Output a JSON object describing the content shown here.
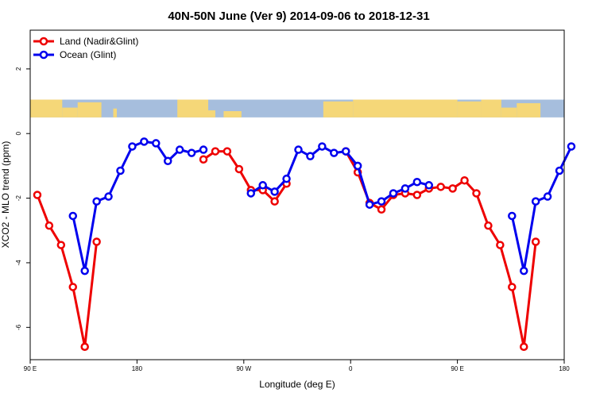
{
  "chart_data": {
    "type": "line",
    "title": "40N-50N June (Ver 9)   2014-09-06 to 2018-12-31",
    "xlabel": "Longitude (deg E)",
    "ylabel": "XCO2 - MLO trend (ppm)",
    "xlim": [
      90,
      540
    ],
    "ylim": [
      -7,
      3.2
    ],
    "x_ticks": [
      {
        "value": 90,
        "label": "90 E"
      },
      {
        "value": 180,
        "label": "180"
      },
      {
        "value": 270,
        "label": "90 W"
      },
      {
        "value": 360,
        "label": "0"
      },
      {
        "value": 450,
        "label": "90 E"
      },
      {
        "value": 540,
        "label": "180"
      }
    ],
    "y_ticks": [
      {
        "value": 2,
        "label": "2"
      },
      {
        "value": 0,
        "label": "0"
      },
      {
        "value": -2,
        "label": "-2"
      },
      {
        "value": -4,
        "label": "-4"
      },
      {
        "value": -6,
        "label": "-6"
      }
    ],
    "legend_position": "top-left",
    "map_band": {
      "ymin": 0.5,
      "ymax": 1.05
    },
    "colors": {
      "land": "#ee0000",
      "ocean": "#0000ee",
      "map_land": "#f5d778",
      "map_ocean": "#a6bedd"
    },
    "series": [
      {
        "name": "Land (Nadir&Glint)",
        "key": "land",
        "segments": [
          [
            [
              96,
              -1.9
            ],
            [
              106,
              -2.85
            ],
            [
              116,
              -3.45
            ],
            [
              126,
              -4.75
            ],
            [
              136,
              -6.6
            ],
            [
              146,
              -3.35
            ]
          ],
          [
            [
              236,
              -0.8
            ],
            [
              246,
              -0.55
            ],
            [
              256,
              -0.55
            ],
            [
              266,
              -1.1
            ],
            [
              276,
              -1.75
            ],
            [
              286,
              -1.75
            ],
            [
              296,
              -2.1
            ],
            [
              306,
              -1.55
            ]
          ],
          [
            [
              356,
              -0.55
            ],
            [
              366,
              -1.2
            ],
            [
              376,
              -2.15
            ],
            [
              386,
              -2.35
            ],
            [
              396,
              -1.9
            ],
            [
              406,
              -1.85
            ],
            [
              416,
              -1.9
            ],
            [
              426,
              -1.7
            ],
            [
              436,
              -1.65
            ],
            [
              446,
              -1.7
            ],
            [
              456,
              -1.45
            ],
            [
              466,
              -1.85
            ],
            [
              476,
              -2.85
            ],
            [
              486,
              -3.45
            ],
            [
              496,
              -4.75
            ],
            [
              506,
              -6.6
            ],
            [
              516,
              -3.35
            ]
          ]
        ]
      },
      {
        "name": "Ocean (Glint)",
        "key": "ocean",
        "segments": [
          [
            [
              126,
              -2.55
            ],
            [
              136,
              -4.25
            ],
            [
              146,
              -2.1
            ],
            [
              156,
              -1.95
            ],
            [
              166,
              -1.15
            ],
            [
              176,
              -0.4
            ],
            [
              186,
              -0.25
            ],
            [
              196,
              -0.3
            ],
            [
              206,
              -0.85
            ],
            [
              216,
              -0.5
            ],
            [
              226,
              -0.6
            ],
            [
              236,
              -0.5
            ]
          ],
          [
            [
              276,
              -1.85
            ],
            [
              286,
              -1.6
            ],
            [
              296,
              -1.8
            ],
            [
              306,
              -1.4
            ],
            [
              316,
              -0.5
            ],
            [
              326,
              -0.7
            ],
            [
              336,
              -0.4
            ],
            [
              346,
              -0.6
            ],
            [
              356,
              -0.55
            ],
            [
              366,
              -1.0
            ],
            [
              376,
              -2.2
            ],
            [
              386,
              -2.1
            ],
            [
              396,
              -1.85
            ],
            [
              406,
              -1.7
            ],
            [
              416,
              -1.5
            ],
            [
              426,
              -1.6
            ]
          ],
          [
            [
              496,
              -2.55
            ],
            [
              506,
              -4.25
            ],
            [
              516,
              -2.1
            ],
            [
              526,
              -1.95
            ],
            [
              536,
              -1.15
            ],
            [
              546,
              -0.4
            ]
          ]
        ]
      }
    ]
  }
}
